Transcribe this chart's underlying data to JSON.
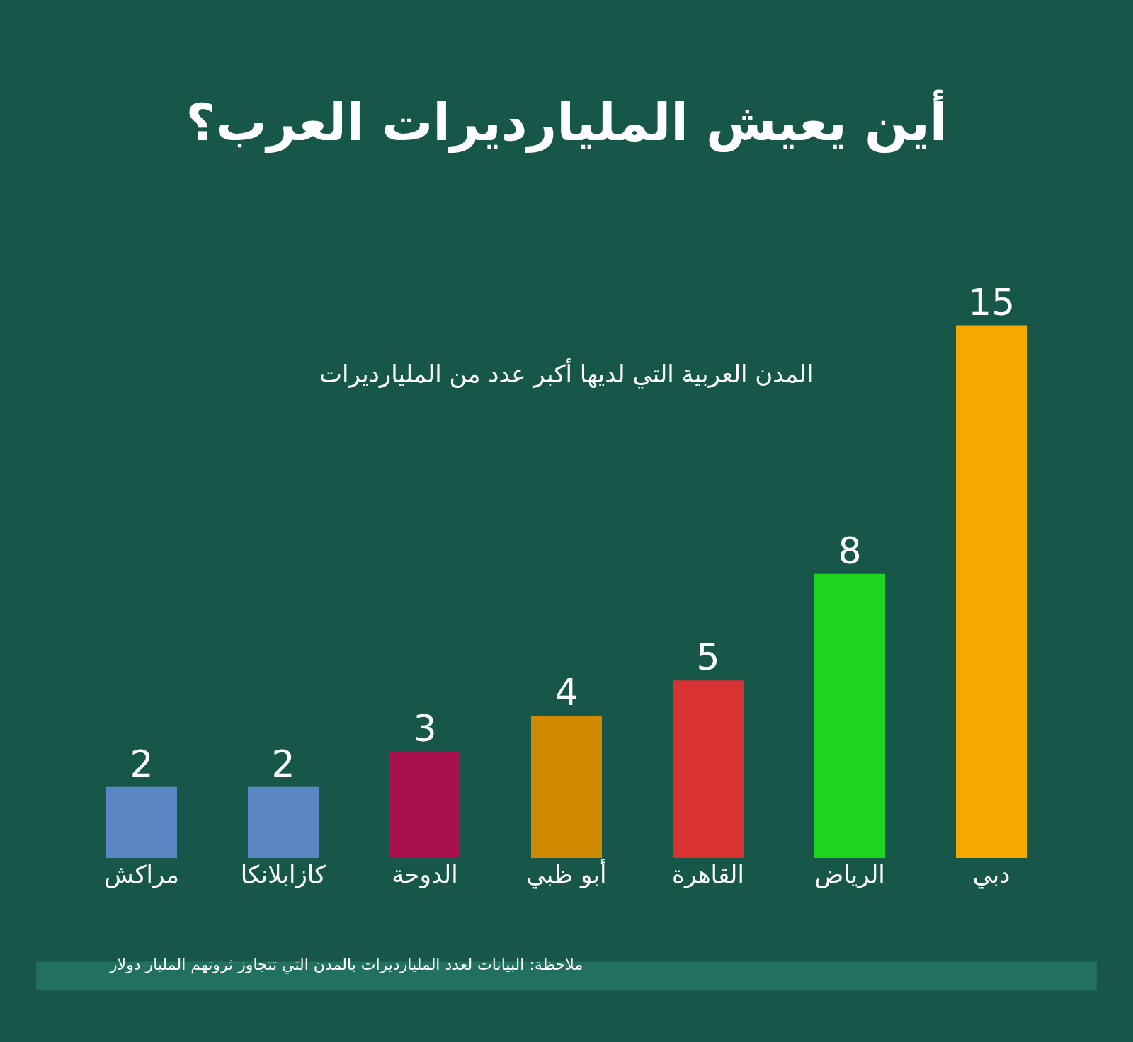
{
  "chart_data": {
    "type": "bar",
    "title": "أين يعيش المليارديرات العرب؟",
    "subtitle": "المدن العربية التي لديها أكبر عدد من المليارديرات",
    "categories": [
      "مراكش",
      "كازابلانكا",
      "الدوحة",
      "أبو ظبي",
      "القاهرة",
      "الرياض",
      "دبي"
    ],
    "values": [
      2,
      2,
      3,
      4,
      5,
      8,
      15
    ],
    "colors": [
      "#5b86c4",
      "#5b86c4",
      "#a8104f",
      "#d08a00",
      "#d83232",
      "#1fd41f",
      "#f5a800"
    ],
    "data_labels": true,
    "grid": false,
    "legend": false,
    "annotations": [
      "ملاحظة: البيانات لعدد المليارديرات بالمدن التي تتجاوز ثروتهم المليار دولار"
    ]
  }
}
